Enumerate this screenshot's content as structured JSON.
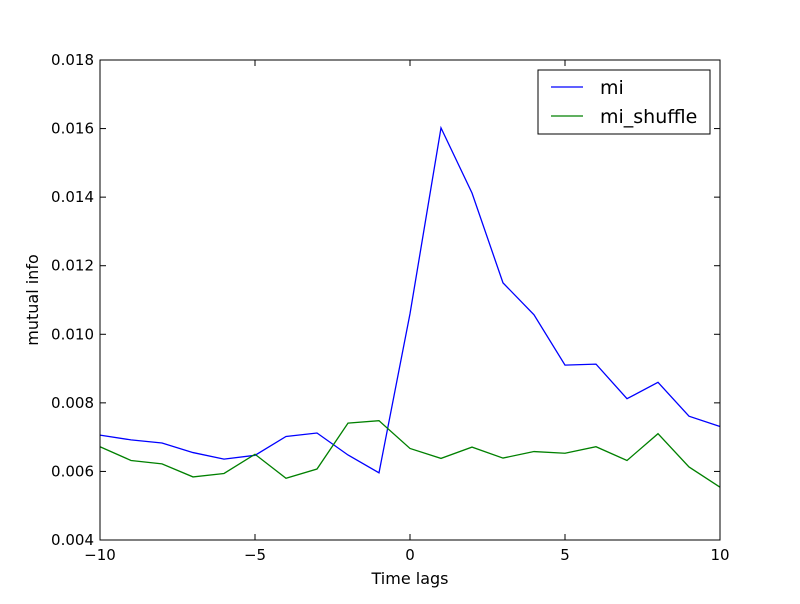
{
  "chart_data": {
    "type": "line",
    "title": "",
    "xlabel": "Time lags",
    "ylabel": "mutual info",
    "xlim": [
      -10,
      10
    ],
    "ylim": [
      0.004,
      0.018
    ],
    "x_ticks": [
      -10,
      -5,
      0,
      5,
      10
    ],
    "x_tick_labels": [
      "−10",
      "−5",
      "0",
      "5",
      "10"
    ],
    "y_ticks": [
      0.004,
      0.006,
      0.008,
      0.01,
      0.012,
      0.014,
      0.016,
      0.018
    ],
    "y_tick_labels": [
      "0.004",
      "0.006",
      "0.008",
      "0.010",
      "0.012",
      "0.014",
      "0.016",
      "0.018"
    ],
    "grid": false,
    "legend_position": "top-right",
    "x": [
      -10,
      -9,
      -8,
      -7,
      -6,
      -5,
      -4,
      -3,
      -2,
      -1,
      0,
      1,
      2,
      3,
      4,
      5,
      6,
      7,
      8,
      9,
      10
    ],
    "series": [
      {
        "name": "mi",
        "color": "#0000ff",
        "values": [
          0.00706,
          0.00692,
          0.00683,
          0.00655,
          0.00636,
          0.00647,
          0.00702,
          0.00712,
          0.00648,
          0.00596,
          0.0106,
          0.01602,
          0.01412,
          0.0115,
          0.01057,
          0.0091,
          0.00913,
          0.00812,
          0.0086,
          0.00761,
          0.00731
        ]
      },
      {
        "name": "mi_shuffle",
        "color": "#008000",
        "values": [
          0.00672,
          0.00632,
          0.00622,
          0.00584,
          0.00594,
          0.0065,
          0.0058,
          0.00607,
          0.00741,
          0.00748,
          0.00667,
          0.00638,
          0.00671,
          0.00639,
          0.00658,
          0.00653,
          0.00672,
          0.00632,
          0.0071,
          0.00613,
          0.00554
        ]
      }
    ]
  }
}
